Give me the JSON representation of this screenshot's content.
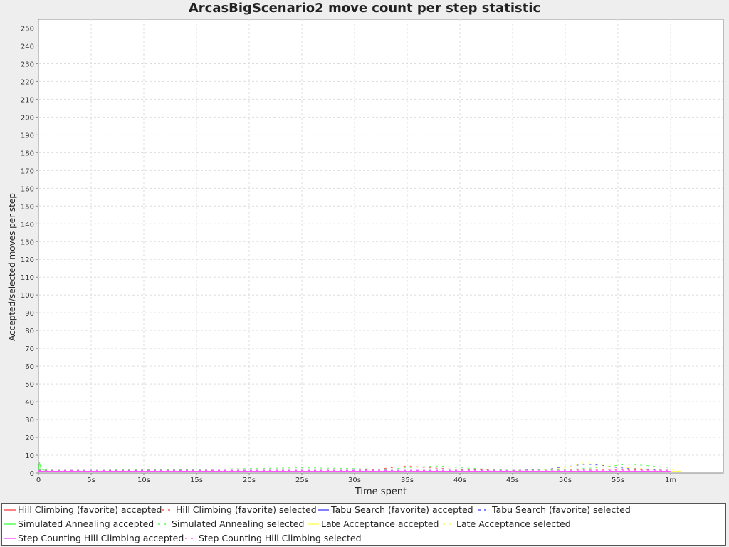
{
  "chart_data": {
    "type": "line",
    "title": "ArcasBigScenario2 move count per step statistic",
    "xlabel": "Time spent",
    "ylabel": "Accepted/selected moves per step",
    "x_unit": "seconds",
    "xlim": [
      0,
      65
    ],
    "ylim": [
      0,
      255
    ],
    "x_ticks": [
      {
        "value": 0,
        "label": "0"
      },
      {
        "value": 5,
        "label": "5s"
      },
      {
        "value": 10,
        "label": "10s"
      },
      {
        "value": 15,
        "label": "15s"
      },
      {
        "value": 20,
        "label": "20s"
      },
      {
        "value": 25,
        "label": "25s"
      },
      {
        "value": 30,
        "label": "30s"
      },
      {
        "value": 35,
        "label": "35s"
      },
      {
        "value": 40,
        "label": "40s"
      },
      {
        "value": 45,
        "label": "45s"
      },
      {
        "value": 50,
        "label": "50s"
      },
      {
        "value": 55,
        "label": "55s"
      },
      {
        "value": 60,
        "label": "1m"
      }
    ],
    "y_ticks": [
      "0",
      "10",
      "20",
      "30",
      "40",
      "50",
      "60",
      "70",
      "80",
      "90",
      "100",
      "110",
      "120",
      "130",
      "140",
      "150",
      "160",
      "170",
      "180",
      "190",
      "200",
      "210",
      "220",
      "230",
      "240",
      "250"
    ],
    "grid": true,
    "legend_position": "bottom",
    "series": [
      {
        "name": "Hill Climbing (favorite) accepted",
        "color": "#ff5555",
        "dashed": false,
        "x": [
          0,
          0.2,
          10,
          20,
          30,
          40,
          50,
          55,
          60
        ],
        "y": [
          2,
          1,
          1,
          1,
          1,
          1,
          1,
          1,
          1
        ]
      },
      {
        "name": "Hill Climbing (favorite) selected",
        "color": "#ff5555",
        "dashed": true,
        "x": [
          0,
          1,
          5,
          10,
          15,
          20,
          25,
          30,
          32,
          35,
          37,
          40,
          45,
          50,
          52,
          55,
          60
        ],
        "y": [
          2,
          1.5,
          1,
          1.5,
          1.5,
          1.5,
          1.5,
          1.5,
          2,
          4,
          3,
          2,
          1.5,
          2,
          2,
          2,
          1.5
        ]
      },
      {
        "name": "Tabu Search (favorite) accepted",
        "color": "#5555ff",
        "dashed": false,
        "x": [
          0,
          10,
          20,
          30,
          40,
          50,
          60
        ],
        "y": [
          1,
          1,
          1,
          1,
          1,
          1,
          1
        ]
      },
      {
        "name": "Tabu Search (favorite) selected",
        "color": "#5555ff",
        "dashed": true,
        "x": [
          0,
          10,
          20,
          30,
          35,
          40,
          45,
          48,
          50,
          52,
          54,
          55,
          58,
          60
        ],
        "y": [
          1.5,
          1.5,
          1.5,
          1.5,
          1.5,
          1.5,
          1.5,
          2,
          3.5,
          5,
          4,
          3,
          2,
          1.5
        ]
      },
      {
        "name": "Simulated Annealing accepted",
        "color": "#55ff55",
        "dashed": false,
        "x": [
          0,
          0.1,
          0.2,
          0.3,
          1,
          5,
          10,
          20,
          30,
          40,
          50,
          55,
          60
        ],
        "y": [
          1,
          6,
          3,
          2,
          1,
          1,
          1,
          1,
          1,
          1,
          1,
          1,
          1
        ]
      },
      {
        "name": "Simulated Annealing selected",
        "color": "#55ff55",
        "dashed": true,
        "x": [
          0,
          2,
          5,
          10,
          15,
          20,
          25,
          30,
          33,
          35,
          38,
          40,
          45,
          50,
          53,
          56,
          58,
          60
        ],
        "y": [
          2,
          1.5,
          1.5,
          2,
          2,
          2.5,
          3,
          2.5,
          2,
          3,
          4,
          3,
          1.5,
          2,
          3,
          5,
          4,
          3
        ]
      },
      {
        "name": "Late Acceptance accepted",
        "color": "#ffff66",
        "dashed": false,
        "x": [
          50,
          55,
          60,
          61
        ],
        "y": [
          1,
          1,
          1,
          1
        ]
      },
      {
        "name": "Late Acceptance selected",
        "color": "#ffff66",
        "dashed": true,
        "x": [
          48,
          50,
          52,
          54,
          56,
          58,
          60,
          61
        ],
        "y": [
          2,
          3,
          6,
          4,
          3,
          2,
          2,
          1
        ]
      },
      {
        "name": "Step Counting Hill Climbing accepted",
        "color": "#ff55ff",
        "dashed": false,
        "x": [
          0,
          20,
          40,
          60
        ],
        "y": [
          1,
          1,
          1,
          1
        ]
      },
      {
        "name": "Step Counting Hill Climbing selected",
        "color": "#ff55ff",
        "dashed": true,
        "x": [
          0,
          20,
          40,
          60
        ],
        "y": [
          1.5,
          1.5,
          1.5,
          1.5
        ]
      }
    ]
  }
}
